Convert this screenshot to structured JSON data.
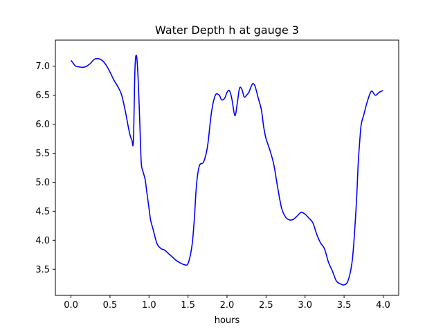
{
  "chart_data": {
    "type": "line",
    "title": "Water Depth h at gauge 3",
    "xlabel": "hours",
    "ylabel": "",
    "xlim": [
      -0.2,
      4.2
    ],
    "ylim": [
      3.05,
      7.45
    ],
    "xticks": [
      0.0,
      0.5,
      1.0,
      1.5,
      2.0,
      2.5,
      3.0,
      3.5,
      4.0
    ],
    "xtick_labels": [
      "0.0",
      "0.5",
      "1.0",
      "1.5",
      "2.0",
      "2.5",
      "3.0",
      "3.5",
      "4.0"
    ],
    "yticks": [
      3.5,
      4.0,
      4.5,
      5.0,
      5.5,
      6.0,
      6.5,
      7.0
    ],
    "ytick_labels": [
      "3.5",
      "4.0",
      "4.5",
      "5.0",
      "5.5",
      "6.0",
      "6.5",
      "7.0"
    ],
    "grid": false,
    "series": [
      {
        "color": "#0000ff",
        "x": [
          0.0,
          0.03,
          0.06,
          0.1,
          0.15,
          0.2,
          0.25,
          0.3,
          0.35,
          0.4,
          0.45,
          0.5,
          0.55,
          0.6,
          0.65,
          0.7,
          0.75,
          0.78,
          0.8,
          0.82,
          0.84,
          0.86,
          0.88,
          0.9,
          0.92,
          0.95,
          0.97,
          1.0,
          1.02,
          1.05,
          1.1,
          1.15,
          1.2,
          1.25,
          1.3,
          1.35,
          1.4,
          1.45,
          1.5,
          1.55,
          1.58,
          1.6,
          1.62,
          1.65,
          1.7,
          1.75,
          1.8,
          1.85,
          1.9,
          1.93,
          1.97,
          2.0,
          2.03,
          2.06,
          2.1,
          2.13,
          2.16,
          2.19,
          2.22,
          2.25,
          2.28,
          2.3,
          2.33,
          2.36,
          2.4,
          2.44,
          2.47,
          2.5,
          2.55,
          2.6,
          2.65,
          2.7,
          2.75,
          2.8,
          2.85,
          2.9,
          2.95,
          3.0,
          3.05,
          3.1,
          3.15,
          3.2,
          3.25,
          3.3,
          3.35,
          3.4,
          3.45,
          3.5,
          3.55,
          3.6,
          3.63,
          3.66,
          3.68,
          3.7,
          3.72,
          3.75,
          3.8,
          3.85,
          3.9,
          3.95,
          4.0
        ],
        "y": [
          7.1,
          7.05,
          7.0,
          6.99,
          6.98,
          7.0,
          7.05,
          7.12,
          7.13,
          7.1,
          7.02,
          6.9,
          6.76,
          6.65,
          6.5,
          6.2,
          5.85,
          5.73,
          5.72,
          6.95,
          7.18,
          6.8,
          6.1,
          5.35,
          5.2,
          5.05,
          4.85,
          4.55,
          4.35,
          4.2,
          3.95,
          3.86,
          3.83,
          3.77,
          3.71,
          3.65,
          3.61,
          3.58,
          3.6,
          3.9,
          4.35,
          4.8,
          5.1,
          5.3,
          5.35,
          5.62,
          6.2,
          6.5,
          6.5,
          6.42,
          6.45,
          6.55,
          6.58,
          6.45,
          6.15,
          6.35,
          6.62,
          6.6,
          6.47,
          6.5,
          6.55,
          6.62,
          6.7,
          6.65,
          6.45,
          6.25,
          5.95,
          5.75,
          5.55,
          5.3,
          4.9,
          4.55,
          4.4,
          4.35,
          4.36,
          4.42,
          4.48,
          4.45,
          4.38,
          4.3,
          4.1,
          3.95,
          3.85,
          3.62,
          3.47,
          3.3,
          3.25,
          3.23,
          3.3,
          3.6,
          4.05,
          4.7,
          5.3,
          5.7,
          6.0,
          6.15,
          6.4,
          6.57,
          6.5,
          6.55,
          6.58
        ]
      }
    ]
  }
}
